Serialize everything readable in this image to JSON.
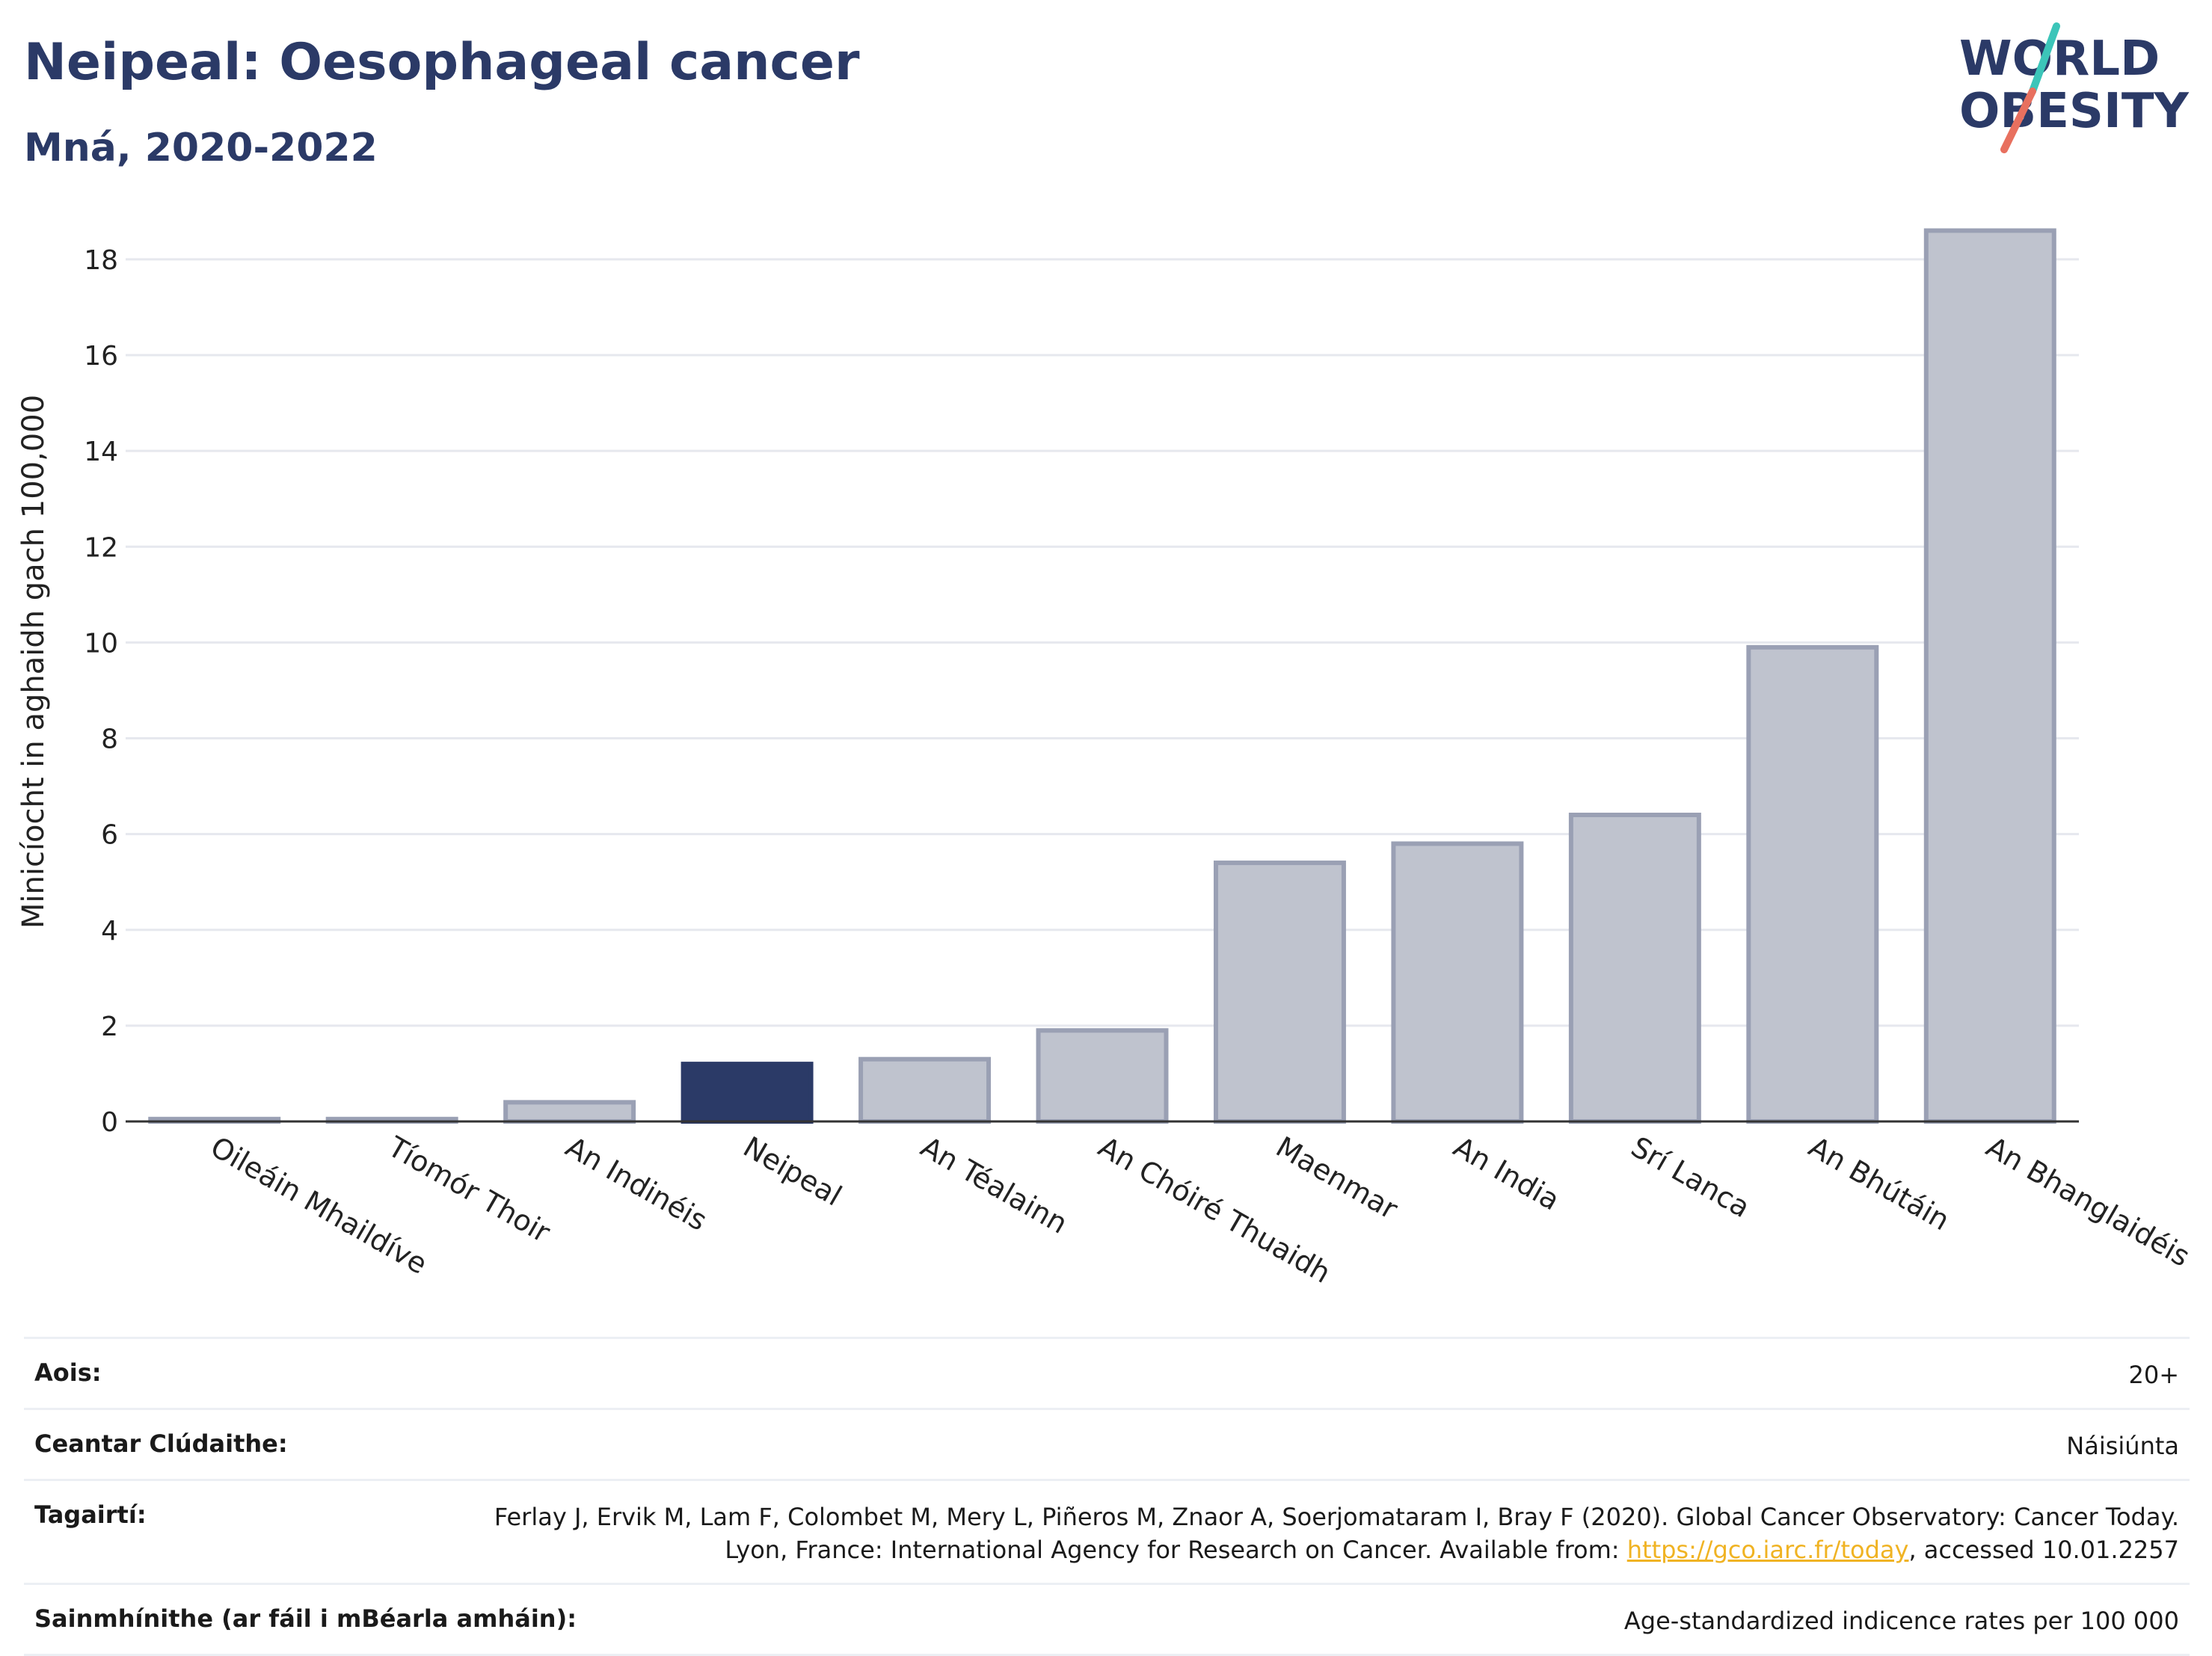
{
  "header": {
    "title": "Neipeal: Oesophageal cancer",
    "subtitle": "Mná, 2020-2022"
  },
  "logo": {
    "line1": "WORLD",
    "line2": "OBESITY",
    "text_color": "#2b3a67",
    "slash_colors": [
      "#3cc5b9",
      "#e8705f"
    ]
  },
  "colors": {
    "highlight_bar": "#2b3a67",
    "other_bar": "#bfc3ce",
    "other_bar_border": "#9aa0b4",
    "link": "#f0b323"
  },
  "chart_data": {
    "type": "bar",
    "title": "Neipeal: Oesophageal cancer",
    "subtitle": "Mná, 2020-2022",
    "xlabel": "",
    "ylabel": "Minicíocht in aghaidh gach 100,000",
    "ylim": [
      0,
      19.2
    ],
    "yticks": [
      0,
      2,
      4,
      6,
      8,
      10,
      12,
      14,
      16,
      18
    ],
    "grid": true,
    "highlight": "Neipeal",
    "categories": [
      "Oileáin Mhaildíve",
      "Tíomór Thoir",
      "An Indinéis",
      "Neipeal",
      "An Téalainn",
      "An Chóiré Thuaidh",
      "Maenmar",
      "An India",
      "Srí Lanca",
      "An Bhútáin",
      "An Bhanglaidéis"
    ],
    "values": [
      0.05,
      0.05,
      0.4,
      1.2,
      1.3,
      1.9,
      5.4,
      5.8,
      6.4,
      9.9,
      18.6
    ]
  },
  "info": {
    "rows": [
      {
        "label": "Aois:",
        "value": "20+"
      },
      {
        "label": "Ceantar Clúdaithe:",
        "value": "Náisiúnta"
      },
      {
        "label": "Tagairtí:",
        "value_pre": "Ferlay J, Ervik M, Lam F, Colombet M, Mery L, Piñeros M, Znaor A, Soerjomataram I, Bray F (2020). Global Cancer Observatory: Cancer Today. Lyon, France: International Agency for Research on Cancer. Available from: ",
        "link": "https://gco.iarc.fr/today",
        "value_post": ", accessed 10.01.2257"
      },
      {
        "label": "Sainmhínithe (ar fáil i mBéarla amháin):",
        "value": "Age-standardized indicence rates per 100 000"
      }
    ]
  }
}
